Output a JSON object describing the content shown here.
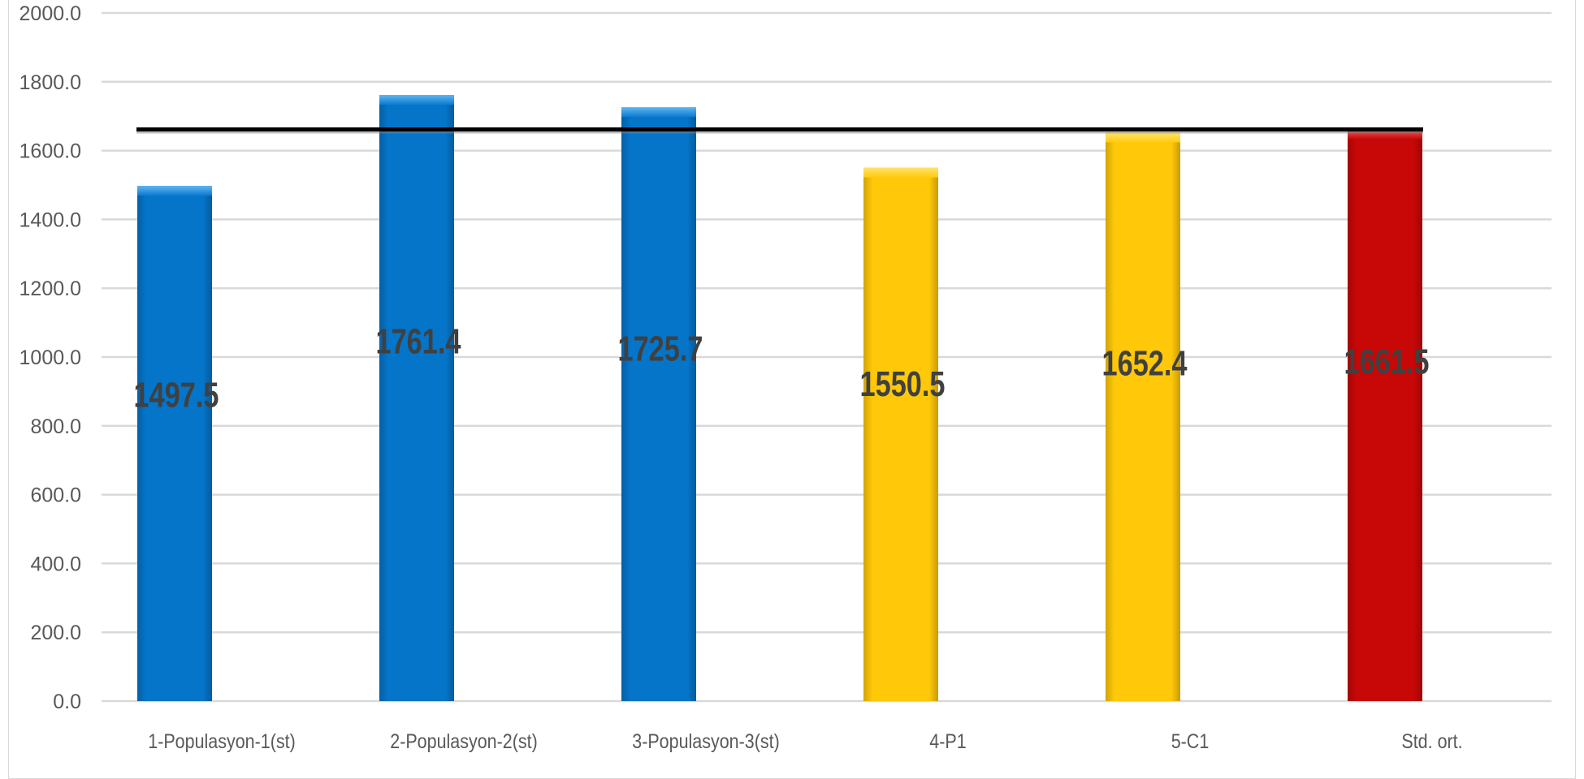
{
  "chart_data": {
    "type": "bar",
    "title": "",
    "xlabel": "",
    "ylabel": "",
    "categories": [
      "1-Populasyon-1(st)",
      "2-Populasyon-2(st)",
      "3-Populasyon-3(st)",
      "4-P1",
      "5-C1",
      "Std. ort."
    ],
    "values": [
      1497.5,
      1761.4,
      1725.7,
      1550.5,
      1652.4,
      1661.5
    ],
    "data_labels": [
      "1497.5",
      "1761.4",
      "1725.7",
      "1550.5",
      "1652.4",
      "1661.5"
    ],
    "bar_colors": [
      "#0575c9",
      "#0575c9",
      "#0575c9",
      "#ffc808",
      "#ffc808",
      "#c80707"
    ],
    "ylim": [
      0,
      2000
    ],
    "yticks": [
      "0.0",
      "200.0",
      "400.0",
      "600.0",
      "800.0",
      "1000.0",
      "1200.0",
      "1400.0",
      "1600.0",
      "1800.0",
      "2000.0"
    ],
    "reference_line": {
      "value": 1661.5,
      "color": "#000000"
    },
    "grid": true,
    "legend": "none"
  }
}
